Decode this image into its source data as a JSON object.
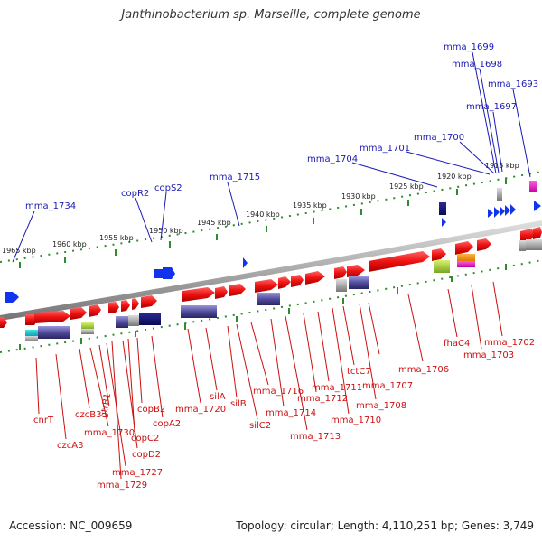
{
  "title": "Janthinobacterium sp. Marseille, complete genome",
  "accession": "Accession: NC_009659",
  "summary": "Topology: circular; Length: 4,110,251 bp; Genes: 3,749",
  "ticks": [
    "1965 kbp",
    "1960 kbp",
    "1955 kbp",
    "1950 kbp",
    "1945 kbp",
    "1940 kbp",
    "1935 kbp",
    "1930 kbp",
    "1925 kbp",
    "1920 kbp",
    "1915 kbp"
  ],
  "top_labels": [
    "mma_1734",
    "copR2",
    "copS2",
    "mma_1715",
    "mma_1704",
    "mma_1701",
    "mma_1700",
    "mma_1699",
    "mma_1698",
    "mma_1697",
    "mma_1693"
  ],
  "bottom_labels": [
    "cnrT",
    "czcA3",
    "czcB3",
    "mma_1730",
    "gtrB1",
    "mma_1727",
    "mma_1729",
    "copD2",
    "copC2",
    "copB2",
    "copA2",
    "mma_1720",
    "silA",
    "silB",
    "silC2",
    "mma_1716",
    "mma_1714",
    "mma_1713",
    "mma_1712",
    "mma_1711",
    "mma_1710",
    "tctC7",
    "mma_1708",
    "mma_1707",
    "mma_1706",
    "fhaC4",
    "mma_1703",
    "mma_1702"
  ],
  "colors": {
    "top_label": "#1a1ab4",
    "bottom_label": "#cc1010",
    "gene_forward": "#ee1111",
    "gene_reverse_small": "#1133ee",
    "backbone": "#888888",
    "tick_track": "#2e8b2e"
  }
}
